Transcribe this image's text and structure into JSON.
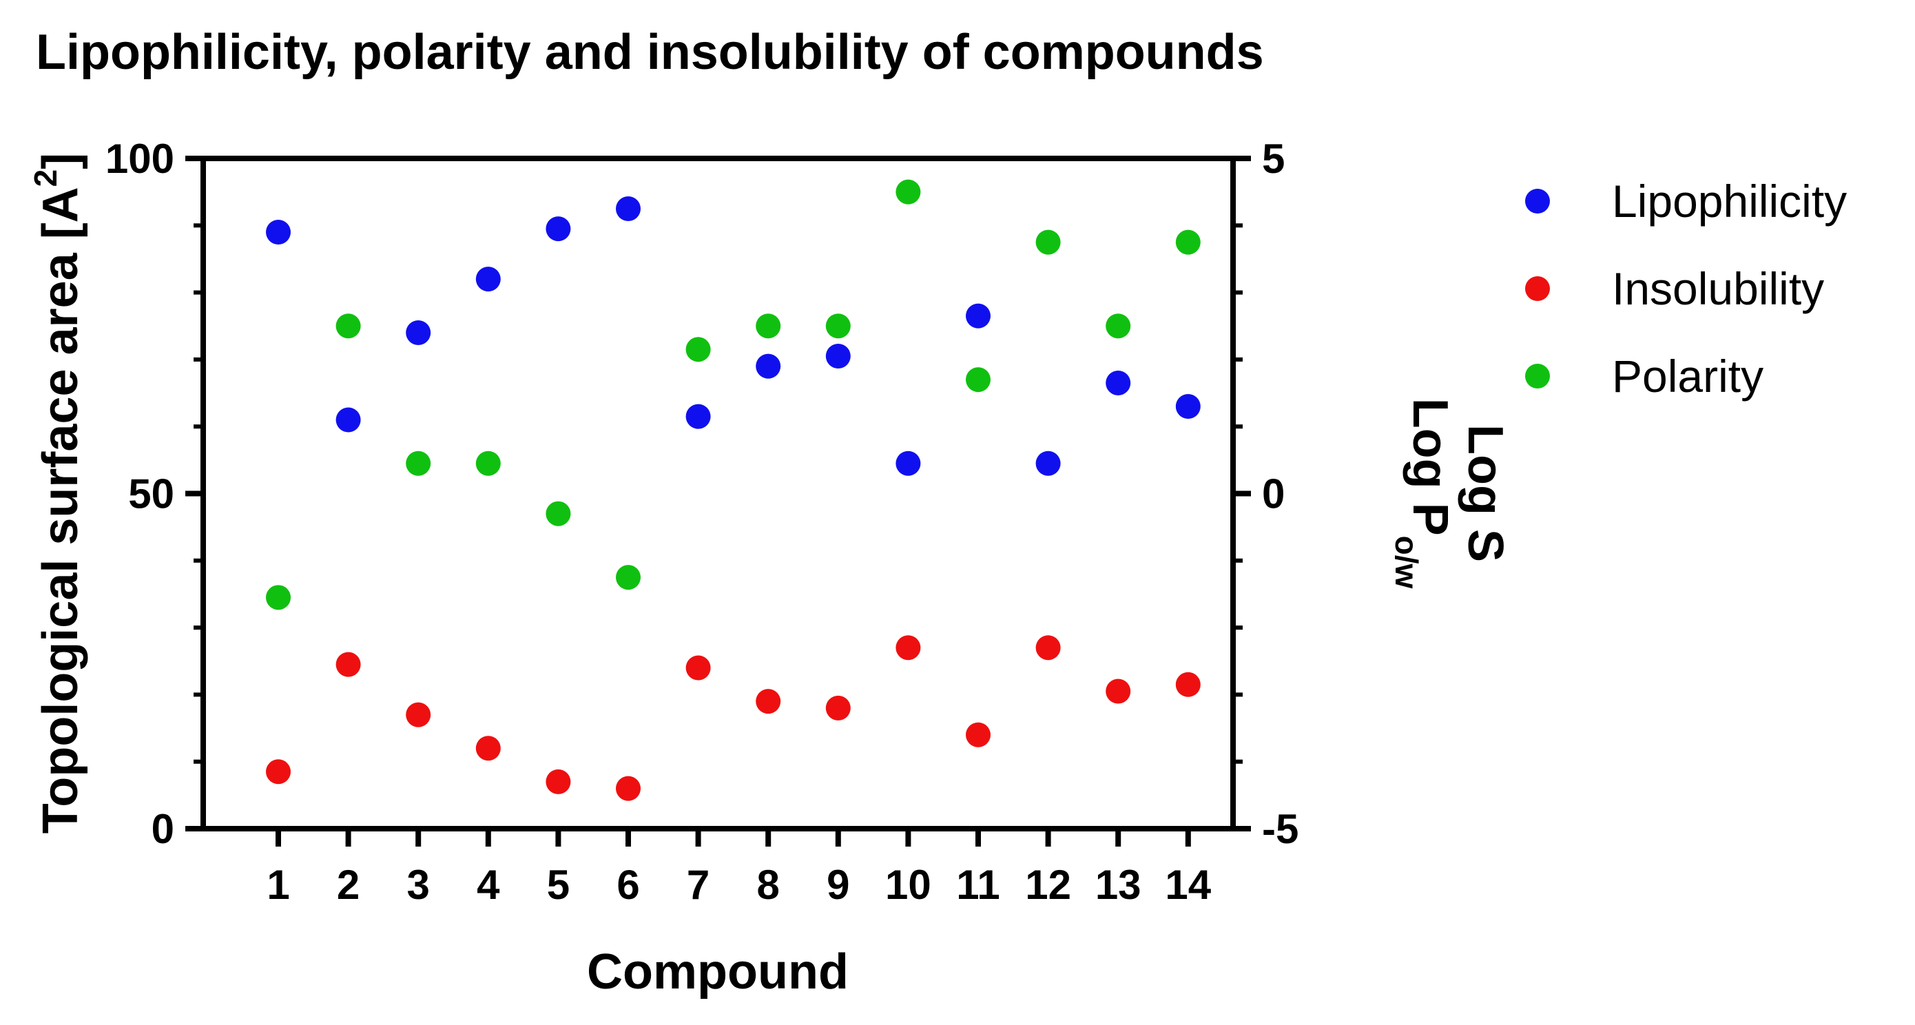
{
  "chart_data": {
    "type": "scatter",
    "title": "Lipophilicity, polarity and insolubility of compounds",
    "xlabel": "Compound",
    "ylabel_left": "Topological surface area [A",
    "ylabel_left_sup": "2",
    "ylabel_left_close": "]",
    "ylabel_right_1": "Log S",
    "ylabel_right_2": "Log P",
    "ylabel_right_2_sub": "o/w",
    "categories": [
      "1",
      "2",
      "3",
      "4",
      "5",
      "6",
      "7",
      "8",
      "9",
      "10",
      "11",
      "12",
      "13",
      "14"
    ],
    "ylim_left": [
      0,
      100
    ],
    "ylim_right": [
      -5,
      5
    ],
    "yticks_left": [
      "0",
      "50",
      "100"
    ],
    "yticks_right": [
      "-5",
      "0",
      "5"
    ],
    "grid": false,
    "legend_position": "right",
    "series": [
      {
        "name": "Lipophilicity",
        "color": "#1010ee",
        "axis": "left",
        "values": [
          89,
          61,
          74,
          82,
          89.5,
          92.5,
          61.5,
          69,
          70.5,
          54.5,
          76.5,
          54.5,
          66.5,
          63
        ]
      },
      {
        "name": "Insolubility",
        "color": "#ee1010",
        "axis": "left",
        "values": [
          8.5,
          24.5,
          17,
          12,
          7,
          6,
          24,
          19,
          18,
          27,
          14,
          27,
          20.5,
          21.5
        ]
      },
      {
        "name": "Polarity",
        "color": "#10c010",
        "axis": "left",
        "values": [
          34.5,
          75,
          54.5,
          54.5,
          47,
          37.5,
          71.5,
          75,
          75,
          95,
          67,
          87.5,
          75,
          87.5
        ]
      }
    ]
  }
}
